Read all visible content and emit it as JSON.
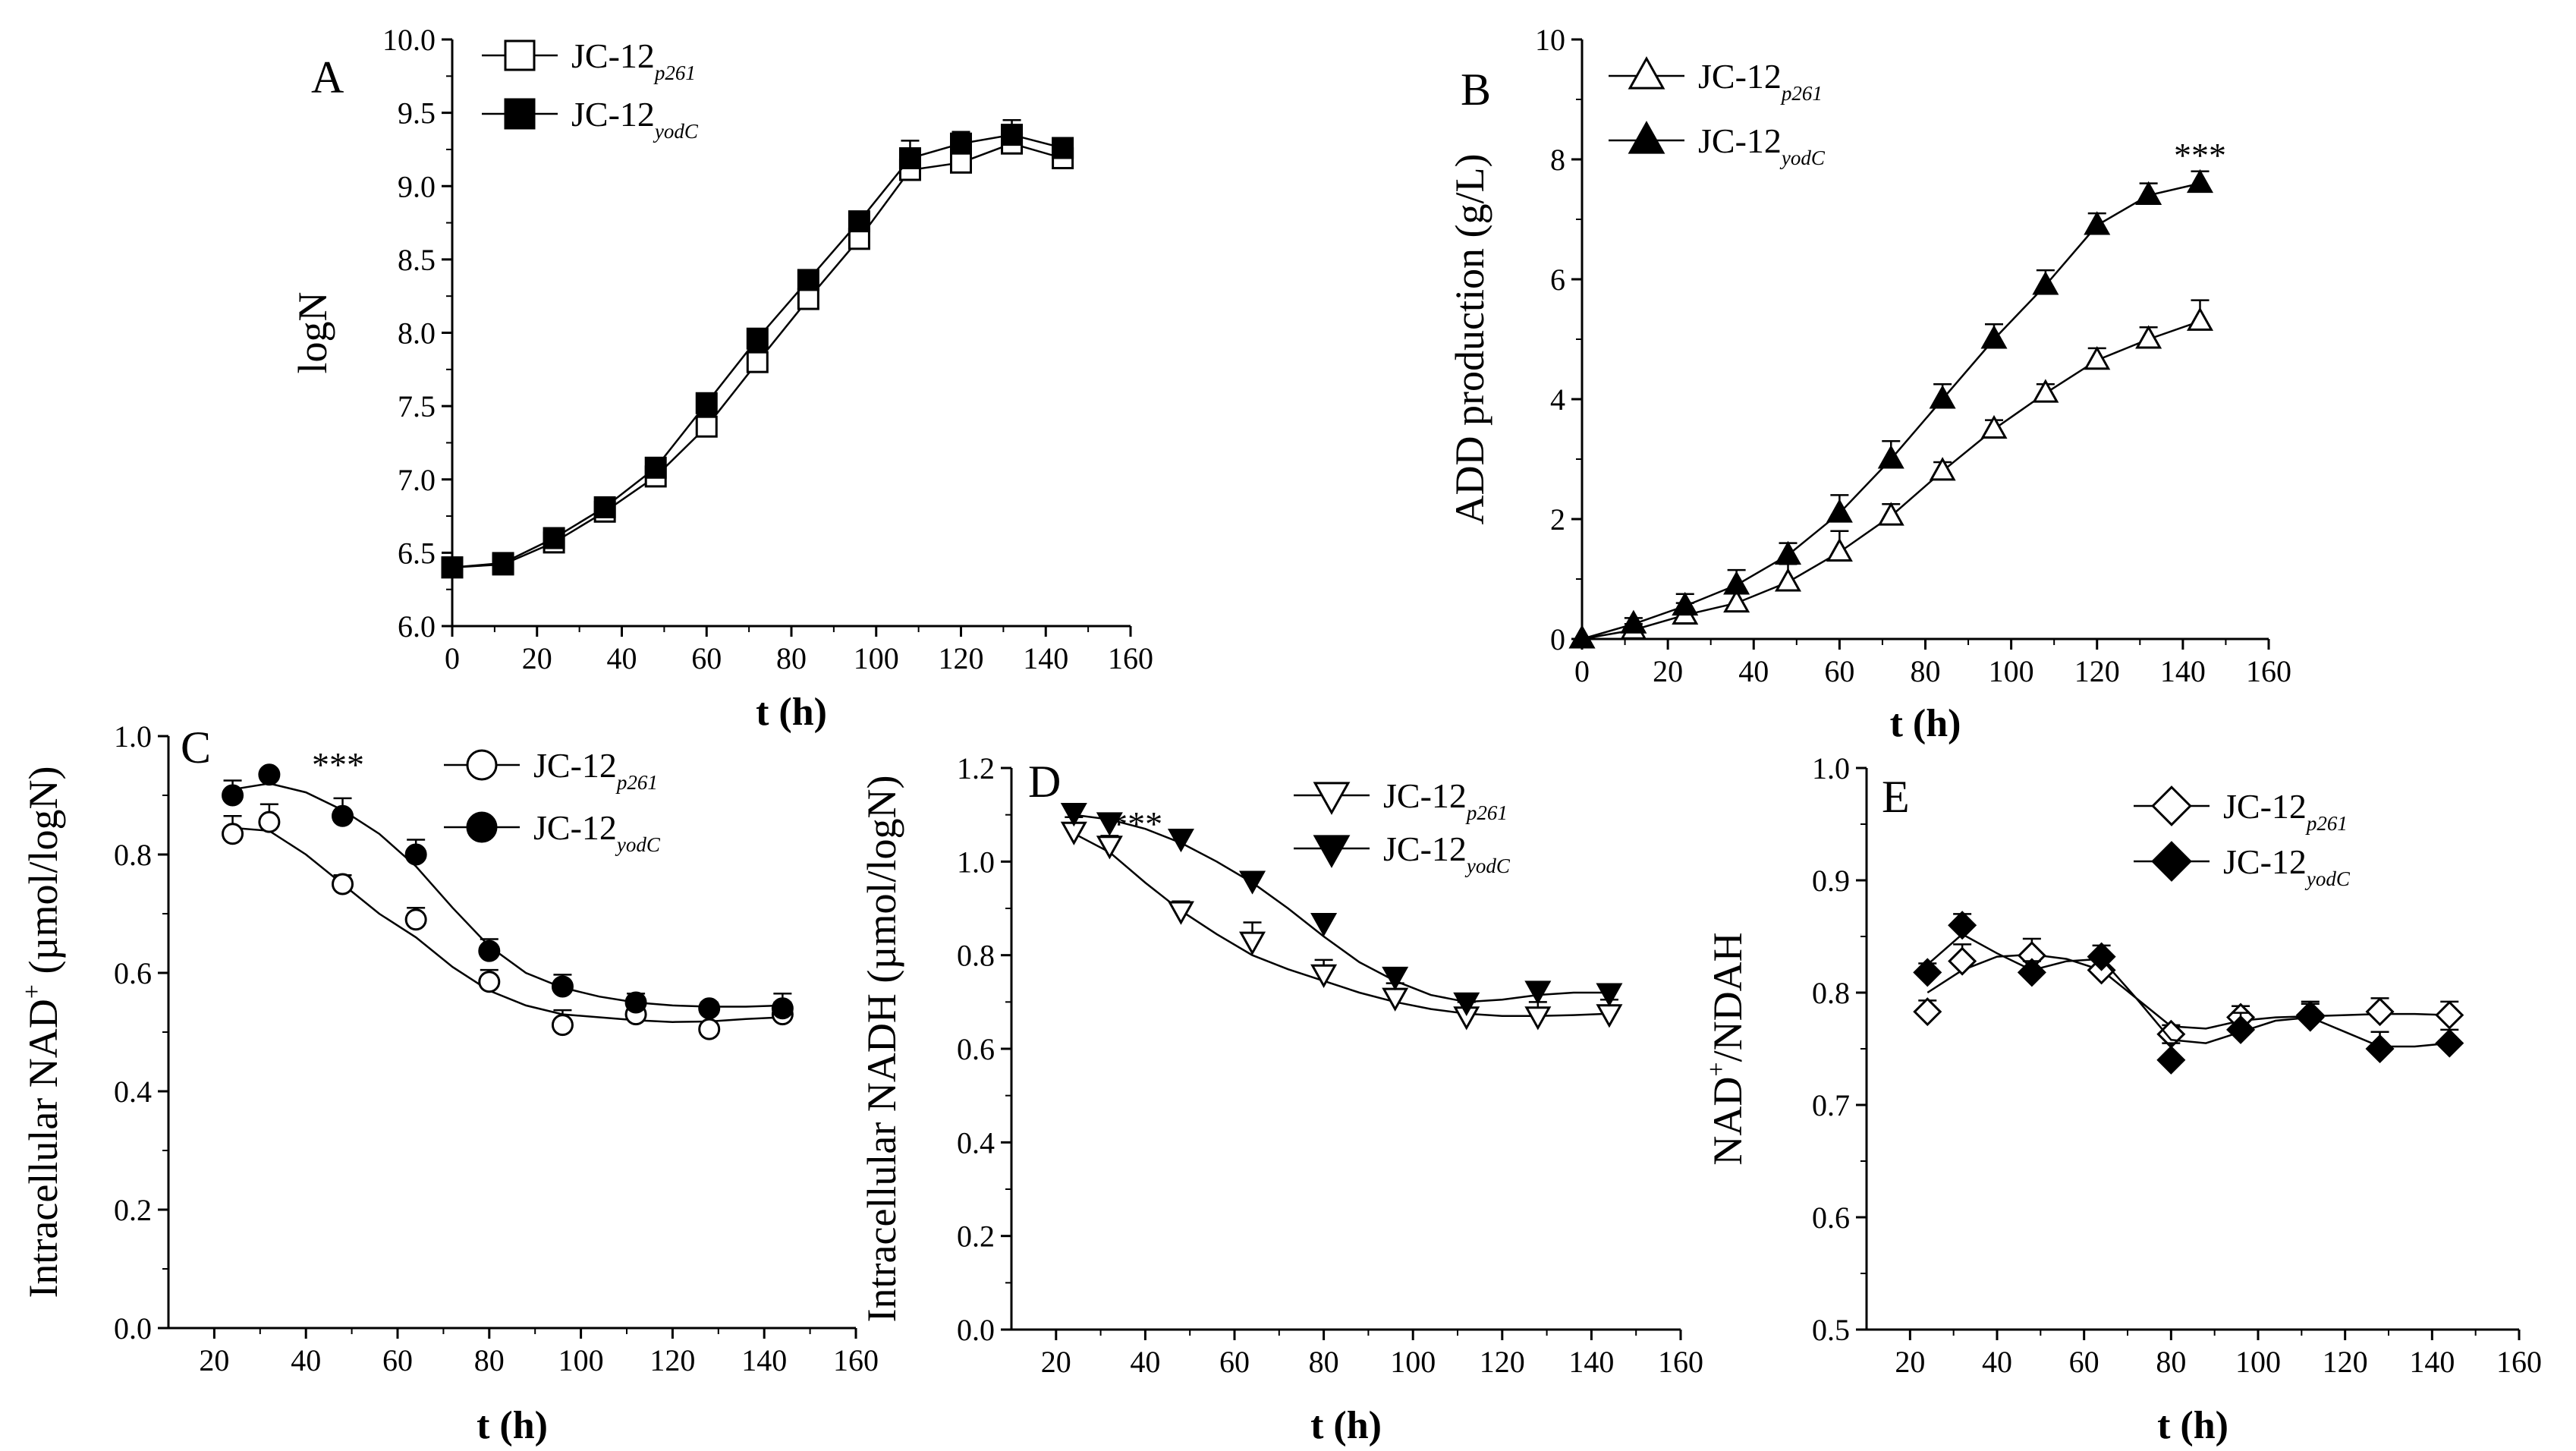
{
  "figure": {
    "sub_letter": "+"
  },
  "chart_data": [
    {
      "panel": "A",
      "type": "line",
      "x_label": "t (h)",
      "y_label": "logN",
      "xlim": [
        0,
        160
      ],
      "ylim": [
        6.0,
        10.0
      ],
      "x_ticks": [
        "0",
        "20",
        "40",
        "60",
        "80",
        "100",
        "120",
        "140",
        "160"
      ],
      "y_ticks": [
        "6.0",
        "6.5",
        "7.0",
        "7.5",
        "8.0",
        "8.5",
        "9.0",
        "9.5",
        "10.0"
      ],
      "series": [
        {
          "name": "JC-12",
          "subscript": "p261",
          "marker": "square",
          "filled": false,
          "x": [
            0,
            12,
            24,
            36,
            48,
            60,
            72,
            84,
            96,
            108,
            120,
            132,
            144
          ],
          "y": [
            6.4,
            6.42,
            6.57,
            6.78,
            7.02,
            7.36,
            7.8,
            8.23,
            8.64,
            9.11,
            9.16,
            9.29,
            9.19
          ],
          "err": [
            0.04,
            0.04,
            0.05,
            0.05,
            0.06,
            0.08,
            0.08,
            0.08,
            0.08,
            0.1,
            0.12,
            0.08,
            0.05
          ]
        },
        {
          "name": "JC-12",
          "subscript": "yodC",
          "marker": "square",
          "filled": true,
          "x": [
            0,
            12,
            24,
            36,
            48,
            60,
            72,
            84,
            96,
            108,
            120,
            132,
            144
          ],
          "y": [
            6.4,
            6.43,
            6.6,
            6.81,
            7.08,
            7.52,
            7.96,
            8.36,
            8.76,
            9.19,
            9.29,
            9.35,
            9.26
          ],
          "err": [
            0.04,
            0.04,
            0.05,
            0.05,
            0.05,
            0.06,
            0.06,
            0.06,
            0.06,
            0.12,
            0.08,
            0.1,
            0.05
          ]
        }
      ],
      "annotations": []
    },
    {
      "panel": "B",
      "type": "line",
      "x_label": "t (h)",
      "y_label": "ADD production (g/L)",
      "xlim": [
        0,
        160
      ],
      "ylim": [
        0,
        10
      ],
      "x_ticks": [
        "0",
        "20",
        "40",
        "60",
        "80",
        "100",
        "120",
        "140",
        "160"
      ],
      "y_ticks": [
        "0",
        "2",
        "4",
        "6",
        "8",
        "10"
      ],
      "series": [
        {
          "name": "JC-12",
          "subscript": "p261",
          "marker": "triangle-up",
          "filled": false,
          "x": [
            0,
            12,
            24,
            36,
            48,
            60,
            72,
            84,
            96,
            108,
            120,
            132,
            144
          ],
          "y": [
            0.0,
            0.15,
            0.4,
            0.6,
            0.95,
            1.45,
            2.05,
            2.8,
            3.5,
            4.1,
            4.65,
            5.0,
            5.3
          ],
          "err": [
            0,
            0.1,
            0.2,
            0.2,
            0.3,
            0.35,
            0.2,
            0.15,
            0.15,
            0.15,
            0.2,
            0.2,
            0.35
          ]
        },
        {
          "name": "JC-12",
          "subscript": "yodC",
          "marker": "triangle-up",
          "filled": true,
          "x": [
            0,
            12,
            24,
            36,
            48,
            60,
            72,
            84,
            96,
            108,
            120,
            132,
            144
          ],
          "y": [
            0.0,
            0.25,
            0.55,
            0.9,
            1.4,
            2.1,
            3.0,
            4.0,
            5.0,
            5.9,
            6.9,
            7.4,
            7.6
          ],
          "err": [
            0,
            0.1,
            0.2,
            0.25,
            0.2,
            0.3,
            0.3,
            0.25,
            0.25,
            0.25,
            0.2,
            0.2,
            0.2
          ]
        }
      ],
      "annotations": [
        {
          "text": "***",
          "x": 144,
          "y": 8.1
        }
      ]
    },
    {
      "panel": "C",
      "type": "line",
      "x_label": "t (h)",
      "y_label": "Intracellular NAD",
      "y_label_suffix": " (µmol/logN)",
      "xlim": [
        10,
        160
      ],
      "ylim": [
        0.0,
        1.0
      ],
      "x_ticks": [
        "20",
        "40",
        "60",
        "80",
        "100",
        "120",
        "140",
        "160"
      ],
      "y_ticks": [
        "0.0",
        "0.2",
        "0.4",
        "0.6",
        "0.8",
        "1.0"
      ],
      "series": [
        {
          "name": "JC-12",
          "subscript": "p261",
          "marker": "circle",
          "filled": false,
          "x": [
            24,
            32,
            48,
            64,
            80,
            96,
            112,
            128,
            144
          ],
          "y": [
            0.835,
            0.855,
            0.75,
            0.69,
            0.585,
            0.512,
            0.53,
            0.505,
            0.53
          ],
          "err": [
            0.03,
            0.03,
            0.015,
            0.02,
            0.02,
            0.025,
            0.025,
            0.03,
            0.035
          ],
          "fit": [
            [
              24,
              0.845
            ],
            [
              32,
              0.84
            ],
            [
              40,
              0.8
            ],
            [
              48,
              0.75
            ],
            [
              56,
              0.7
            ],
            [
              64,
              0.66
            ],
            [
              72,
              0.61
            ],
            [
              80,
              0.57
            ],
            [
              88,
              0.545
            ],
            [
              96,
              0.53
            ],
            [
              104,
              0.525
            ],
            [
              112,
              0.52
            ],
            [
              120,
              0.517
            ],
            [
              128,
              0.518
            ],
            [
              136,
              0.522
            ],
            [
              144,
              0.525
            ]
          ]
        },
        {
          "name": "JC-12",
          "subscript": "yodC",
          "marker": "circle",
          "filled": true,
          "x": [
            24,
            32,
            48,
            64,
            80,
            96,
            112,
            128,
            144
          ],
          "y": [
            0.9,
            0.935,
            0.865,
            0.8,
            0.637,
            0.577,
            0.55,
            0.54,
            0.54
          ],
          "err": [
            0.025,
            0.0,
            0.03,
            0.025,
            0.02,
            0.02,
            0.015,
            0.01,
            0.01
          ],
          "fit": [
            [
              24,
              0.91
            ],
            [
              32,
              0.92
            ],
            [
              40,
              0.905
            ],
            [
              48,
              0.875
            ],
            [
              56,
              0.835
            ],
            [
              64,
              0.78
            ],
            [
              72,
              0.71
            ],
            [
              80,
              0.645
            ],
            [
              88,
              0.6
            ],
            [
              96,
              0.575
            ],
            [
              104,
              0.56
            ],
            [
              112,
              0.55
            ],
            [
              120,
              0.545
            ],
            [
              128,
              0.543
            ],
            [
              136,
              0.543
            ],
            [
              144,
              0.545
            ]
          ]
        }
      ],
      "annotations": [
        {
          "text": "***",
          "x": 47,
          "y": 0.955
        }
      ]
    },
    {
      "panel": "D",
      "type": "line",
      "x_label": "t (h)",
      "y_label": "Intracellular NADH (µmol/logN)",
      "xlim": [
        10,
        160
      ],
      "ylim": [
        0.0,
        1.2
      ],
      "x_ticks": [
        "20",
        "40",
        "60",
        "80",
        "100",
        "120",
        "140",
        "160"
      ],
      "y_ticks": [
        "0.0",
        "0.2",
        "0.4",
        "0.6",
        "0.8",
        "1.0",
        "1.2"
      ],
      "series": [
        {
          "name": "JC-12",
          "subscript": "p261",
          "marker": "triangle-down",
          "filled": false,
          "x": [
            24,
            32,
            48,
            64,
            80,
            96,
            112,
            128,
            144
          ],
          "y": [
            1.065,
            1.035,
            0.895,
            0.83,
            0.76,
            0.71,
            0.67,
            0.67,
            0.675
          ],
          "err": [
            0.03,
            0.02,
            0.02,
            0.04,
            0.03,
            0.03,
            0.03,
            0.03,
            0.03
          ],
          "fit": [
            [
              24,
              1.06
            ],
            [
              32,
              1.02
            ],
            [
              40,
              0.955
            ],
            [
              48,
              0.895
            ],
            [
              56,
              0.845
            ],
            [
              64,
              0.8
            ],
            [
              72,
              0.77
            ],
            [
              80,
              0.745
            ],
            [
              88,
              0.72
            ],
            [
              96,
              0.7
            ],
            [
              104,
              0.685
            ],
            [
              112,
              0.675
            ],
            [
              120,
              0.67
            ],
            [
              128,
              0.67
            ],
            [
              136,
              0.672
            ],
            [
              144,
              0.675
            ]
          ]
        },
        {
          "name": "JC-12",
          "subscript": "yodC",
          "marker": "triangle-down",
          "filled": true,
          "x": [
            24,
            32,
            48,
            64,
            80,
            96,
            112,
            128,
            144
          ],
          "y": [
            1.105,
            1.085,
            1.05,
            0.96,
            0.87,
            0.755,
            0.7,
            0.725,
            0.72
          ],
          "err": [
            0.0,
            0.0,
            0.0,
            0.015,
            0.015,
            0.01,
            0.01,
            0.01,
            0.01
          ],
          "fit": [
            [
              24,
              1.1
            ],
            [
              32,
              1.09
            ],
            [
              40,
              1.07
            ],
            [
              48,
              1.04
            ],
            [
              56,
              1.0
            ],
            [
              64,
              0.955
            ],
            [
              72,
              0.9
            ],
            [
              80,
              0.84
            ],
            [
              88,
              0.785
            ],
            [
              96,
              0.745
            ],
            [
              104,
              0.715
            ],
            [
              112,
              0.7
            ],
            [
              120,
              0.705
            ],
            [
              128,
              0.715
            ],
            [
              136,
              0.72
            ],
            [
              144,
              0.72
            ]
          ]
        }
      ],
      "annotations": [
        {
          "text": "***",
          "x": 38,
          "y": 1.085
        }
      ]
    },
    {
      "panel": "E",
      "type": "line",
      "x_label": "t (h)",
      "y_label": "NAD",
      "y_label_suffix": "/NDAH",
      "xlim": [
        10,
        160
      ],
      "ylim": [
        0.5,
        1.0
      ],
      "x_ticks": [
        "20",
        "40",
        "60",
        "80",
        "100",
        "120",
        "140",
        "160"
      ],
      "y_ticks": [
        "0.5",
        "0.6",
        "0.7",
        "0.8",
        "0.9",
        "1.0"
      ],
      "series": [
        {
          "name": "JC-12",
          "subscript": "p261",
          "marker": "diamond",
          "filled": false,
          "x": [
            24,
            32,
            48,
            64,
            80,
            96,
            112,
            128,
            144
          ],
          "y": [
            0.783,
            0.828,
            0.833,
            0.82,
            0.763,
            0.778,
            0.778,
            0.783,
            0.78
          ],
          "err": [
            0.01,
            0.015,
            0.015,
            0.01,
            0.008,
            0.01,
            0.012,
            0.012,
            0.012
          ],
          "fit": [
            [
              24,
              0.8
            ],
            [
              32,
              0.82
            ],
            [
              40,
              0.832
            ],
            [
              48,
              0.834
            ],
            [
              56,
              0.83
            ],
            [
              64,
              0.82
            ],
            [
              72,
              0.795
            ],
            [
              80,
              0.77
            ],
            [
              88,
              0.768
            ],
            [
              96,
              0.775
            ],
            [
              104,
              0.778
            ],
            [
              112,
              0.779
            ],
            [
              120,
              0.78
            ],
            [
              128,
              0.781
            ],
            [
              136,
              0.781
            ],
            [
              144,
              0.78
            ]
          ]
        },
        {
          "name": "JC-12",
          "subscript": "yodC",
          "marker": "diamond",
          "filled": true,
          "x": [
            24,
            32,
            48,
            64,
            80,
            96,
            112,
            128,
            144
          ],
          "y": [
            0.818,
            0.86,
            0.818,
            0.832,
            0.74,
            0.767,
            0.78,
            0.75,
            0.755
          ],
          "err": [
            0.008,
            0.01,
            0.01,
            0.01,
            0.015,
            0.015,
            0.012,
            0.015,
            0.012
          ],
          "fit": [
            [
              24,
              0.825
            ],
            [
              32,
              0.852
            ],
            [
              40,
              0.835
            ],
            [
              48,
              0.82
            ],
            [
              56,
              0.828
            ],
            [
              64,
              0.83
            ],
            [
              72,
              0.795
            ],
            [
              80,
              0.758
            ],
            [
              88,
              0.755
            ],
            [
              96,
              0.765
            ],
            [
              104,
              0.775
            ],
            [
              112,
              0.778
            ],
            [
              120,
              0.765
            ],
            [
              128,
              0.752
            ],
            [
              136,
              0.752
            ],
            [
              144,
              0.755
            ]
          ]
        }
      ],
      "annotations": []
    }
  ]
}
